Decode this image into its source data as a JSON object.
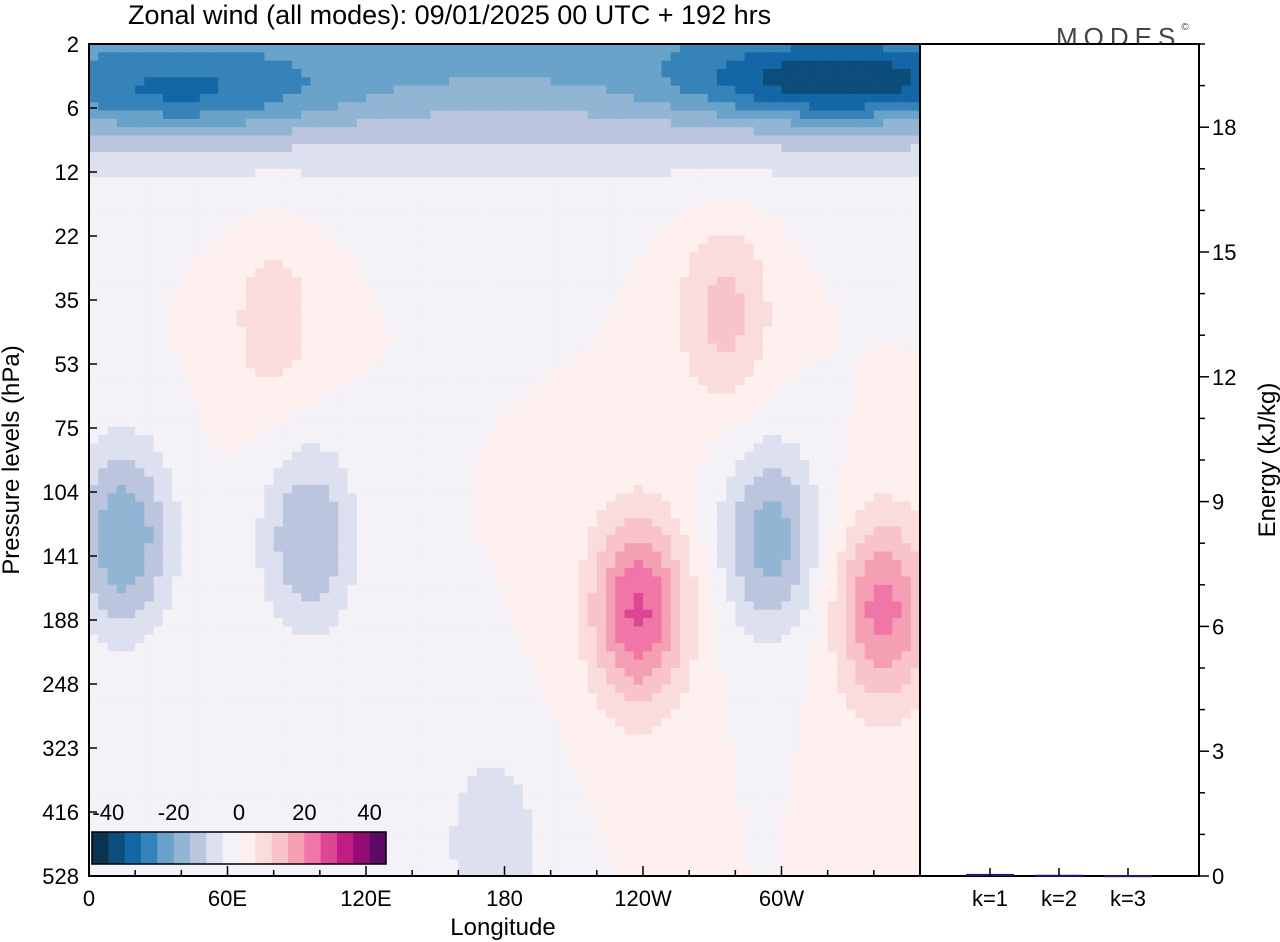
{
  "header": {
    "title": "Zonal wind (all modes):  09/01/2025  00 UTC  + 192 hrs",
    "brand": "MODES",
    "brand_mark": "©"
  },
  "chart_data": [
    {
      "type": "heatmap",
      "title": "Zonal wind (all modes):  09/01/2025  00 UTC  + 192 hrs",
      "xlabel": "Longitude",
      "ylabel": "Pressure levels (hPa)",
      "x_ticks": [
        "0",
        "60E",
        "120E",
        "180",
        "120W",
        "60W"
      ],
      "x_tick_values": [
        0,
        60,
        120,
        180,
        240,
        300
      ],
      "xlim": [
        0,
        360
      ],
      "y_ticks": [
        "2",
        "6",
        "12",
        "22",
        "35",
        "53",
        "75",
        "104",
        "141",
        "188",
        "248",
        "323",
        "416",
        "528"
      ],
      "colorbar": {
        "tick_labels": [
          "-40",
          "-20",
          "0",
          "20",
          "40"
        ],
        "range": [
          -45,
          45
        ],
        "step": 5,
        "colors": [
          "#0b3350",
          "#0d4d7b",
          "#1367a6",
          "#3683ba",
          "#6aa3c9",
          "#93b5d4",
          "#bcc5de",
          "#dde0ee",
          "#f4f1f7",
          "#fdf0ee",
          "#fbdcdc",
          "#f8c3ca",
          "#f59fb4",
          "#ef76a6",
          "#dd4595",
          "#bf1d83",
          "#950b75",
          "#5b0b66"
        ]
      },
      "features": [
        {
          "name": "stratospheric easterly jet core",
          "lon": 325,
          "pressure_hPa": 4,
          "value": -42
        },
        {
          "name": "stratospheric easterly band",
          "lon": 40,
          "pressure_hPa": 5,
          "value": -35
        },
        {
          "name": "upper westerly band",
          "lon": 80,
          "pressure_hPa": 40,
          "value": 8
        },
        {
          "name": "upper westerly maximum",
          "lon": 275,
          "pressure_hPa": 38,
          "value": 12
        },
        {
          "name": "tropospheric easterly cell",
          "lon": 15,
          "pressure_hPa": 130,
          "value": -20
        },
        {
          "name": "tropospheric easterly cell",
          "lon": 95,
          "pressure_hPa": 130,
          "value": -15
        },
        {
          "name": "tropospheric easterly cell",
          "lon": 295,
          "pressure_hPa": 130,
          "value": -18
        },
        {
          "name": "tropospheric westerly maximum",
          "lon": 238,
          "pressure_hPa": 180,
          "value": 26
        },
        {
          "name": "tropospheric westerly maximum",
          "lon": 344,
          "pressure_hPa": 180,
          "value": 22
        },
        {
          "name": "lower easterly cell",
          "lon": 175,
          "pressure_hPa": 470,
          "value": -10
        }
      ]
    },
    {
      "type": "bar",
      "ylabel": "Energy (kJ/kg)",
      "ylim": [
        0,
        20
      ],
      "y_ticks": [
        0,
        3,
        6,
        9,
        12,
        15,
        18
      ],
      "categories": [
        "k=1",
        "k=2",
        "k=3"
      ],
      "values": [
        0.05,
        0.03,
        0.02
      ]
    }
  ]
}
